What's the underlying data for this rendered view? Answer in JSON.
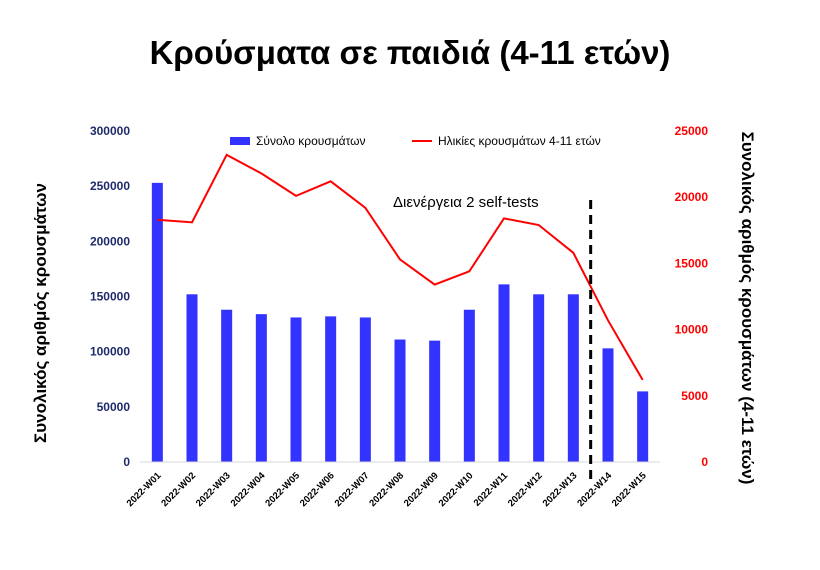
{
  "chart_data": {
    "type": "bar",
    "title": "Κρούσματα σε παιδιά (4-11 ετών)",
    "categories": [
      "2022-W01",
      "2022-W02",
      "2022-W03",
      "2022-W04",
      "2022-W05",
      "2022-W06",
      "2022-W07",
      "2022-W08",
      "2022-W09",
      "2022-W10",
      "2022-W11",
      "2022-W12",
      "2022-W13",
      "2022-W14",
      "2022-W15"
    ],
    "ylabel": "Συνολικός αριθμός κρουσμάτων",
    "y2label": "Συνολικός αριθμός κρουσμάτων (4-11 ετών)",
    "ylim": [
      0,
      300000
    ],
    "y2lim": [
      0,
      25000
    ],
    "yticks": [
      "0",
      "50000",
      "100000",
      "150000",
      "200000",
      "250000",
      "300000"
    ],
    "y2ticks": [
      "0",
      "5000",
      "10000",
      "15000",
      "20000",
      "25000"
    ],
    "series": [
      {
        "name": "Σύνολο κρουσμάτων",
        "type": "bar",
        "axis": "left",
        "color": "#3333ff",
        "values": [
          253000,
          152000,
          138000,
          134000,
          131000,
          132000,
          131000,
          111000,
          110000,
          138000,
          161000,
          152000,
          152000,
          103000,
          64000
        ]
      },
      {
        "name": "Ηλικίες κρουσμάτων 4-11 ετών",
        "type": "line",
        "axis": "right",
        "color": "#ff0000",
        "values": [
          18300,
          18100,
          23200,
          21800,
          20100,
          21200,
          19200,
          15300,
          13400,
          14400,
          18400,
          17900,
          15800,
          10700,
          6200
        ]
      }
    ],
    "legend_position": "top-center",
    "annotation": {
      "text": "Διενέργεια 2 self-tests",
      "between": [
        "2022-W13",
        "2022-W14"
      ]
    },
    "grid": false
  }
}
